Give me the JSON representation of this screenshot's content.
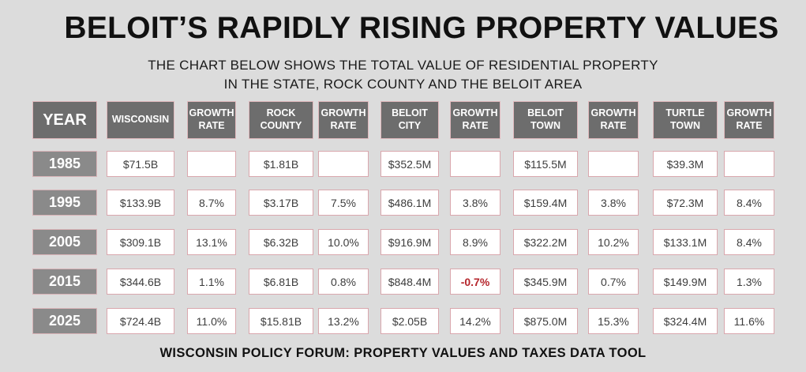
{
  "title": "BELOIT’S RAPIDLY RISING PROPERTY VALUES",
  "subtitle_line1": "THE CHART BELOW SHOWS THE TOTAL VALUE OF RESIDENTIAL PROPERTY",
  "subtitle_line2": "IN THE STATE, ROCK COUNTY AND THE BELOIT AREA",
  "footer": "WISCONSIN POLICY FORUM: PROPERTY VALUES AND TAXES DATA TOOL",
  "colors": {
    "background": "#dcdcdc",
    "header_fill": "#6d6d6d",
    "year_fill": "#8a8a8a",
    "cell_border": "#d9a7ad",
    "negative_text": "#b5262c"
  },
  "chart_data": {
    "type": "table",
    "title": "BELOIT’S RAPIDLY RISING PROPERTY VALUES",
    "columns": [
      {
        "key": "year",
        "label": "YEAR"
      },
      {
        "key": "wisconsin",
        "label": "WISCONSIN"
      },
      {
        "key": "wisconsin_growth",
        "label": "GROWTH\nRATE"
      },
      {
        "key": "rock_county",
        "label": "ROCK\nCOUNTY"
      },
      {
        "key": "rock_county_growth",
        "label": "GROWTH\nRATE"
      },
      {
        "key": "beloit_city",
        "label": "BELOIT\nCITY"
      },
      {
        "key": "beloit_city_growth",
        "label": "GROWTH\nRATE"
      },
      {
        "key": "beloit_town",
        "label": "BELOIT\nTOWN"
      },
      {
        "key": "beloit_town_growth",
        "label": "GROWTH\nRATE"
      },
      {
        "key": "turtle_town",
        "label": "TURTLE\nTOWN"
      },
      {
        "key": "turtle_town_growth",
        "label": "GROWTH\nRATE"
      }
    ],
    "rows": [
      [
        "1985",
        "$71.5B",
        "",
        "$1.81B",
        "",
        "$352.5M",
        "",
        "$115.5M",
        "",
        "$39.3M",
        ""
      ],
      [
        "1995",
        "$133.9B",
        "8.7%",
        "$3.17B",
        "7.5%",
        "$486.1M",
        "3.8%",
        "$159.4M",
        "3.8%",
        "$72.3M",
        "8.4%"
      ],
      [
        "2005",
        "$309.1B",
        "13.1%",
        "$6.32B",
        "10.0%",
        "$916.9M",
        "8.9%",
        "$322.2M",
        "10.2%",
        "$133.1M",
        "8.4%"
      ],
      [
        "2015",
        "$344.6B",
        "1.1%",
        "$6.81B",
        "0.8%",
        "$848.4M",
        "-0.7%",
        "$345.9M",
        "0.7%",
        "$149.9M",
        "1.3%"
      ],
      [
        "2025",
        "$724.4B",
        "11.0%",
        "$15.81B",
        "13.2%",
        "$2.05B",
        "14.2%",
        "$875.0M",
        "15.3%",
        "$324.4M",
        "11.6%"
      ]
    ]
  }
}
